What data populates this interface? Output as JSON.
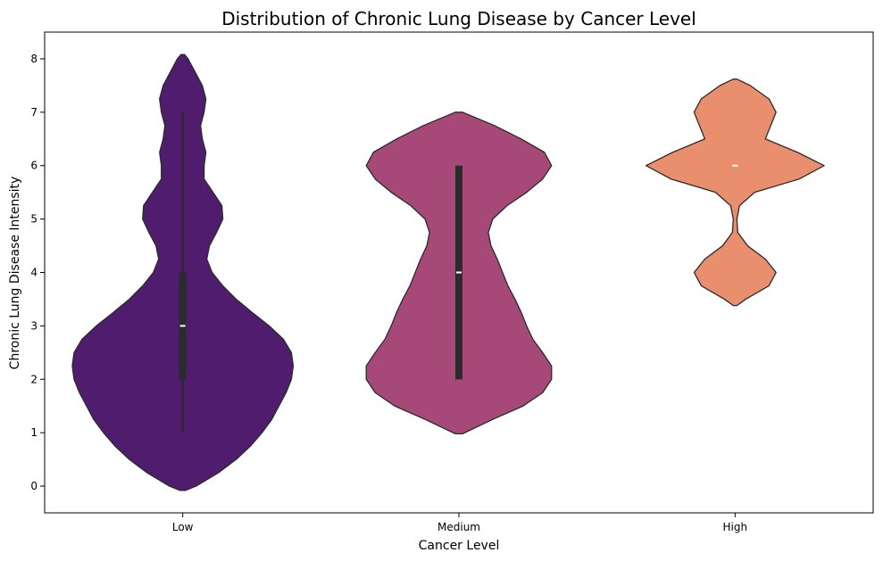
{
  "chart_data": {
    "type": "violin",
    "title": "Distribution of Chronic Lung Disease by Cancer Level",
    "xlabel": "Cancer Level",
    "ylabel": "Chronic Lung Disease Intensity",
    "categories": [
      "Low",
      "Medium",
      "High"
    ],
    "ylim": [
      -0.5,
      8.5
    ],
    "yticks": [
      0,
      1,
      2,
      3,
      4,
      5,
      6,
      7,
      8
    ],
    "grid": false,
    "colors": [
      "#4f1c6e",
      "#a64878",
      "#e98f6e"
    ],
    "edge_color": "#2b2b2b",
    "violins": [
      {
        "category": "Low",
        "density": [
          [
            -0.08,
            0.03
          ],
          [
            0.0,
            0.15
          ],
          [
            0.25,
            0.4
          ],
          [
            0.5,
            0.6
          ],
          [
            0.75,
            0.76
          ],
          [
            1.0,
            0.89
          ],
          [
            1.25,
            1.0
          ],
          [
            1.5,
            1.08
          ],
          [
            1.75,
            1.16
          ],
          [
            2.0,
            1.22
          ],
          [
            2.25,
            1.24
          ],
          [
            2.5,
            1.22
          ],
          [
            2.75,
            1.13
          ],
          [
            3.0,
            0.97
          ],
          [
            3.25,
            0.78
          ],
          [
            3.5,
            0.6
          ],
          [
            3.75,
            0.45
          ],
          [
            4.0,
            0.33
          ],
          [
            4.25,
            0.27
          ],
          [
            4.5,
            0.3
          ],
          [
            4.75,
            0.38
          ],
          [
            5.0,
            0.45
          ],
          [
            5.25,
            0.44
          ],
          [
            5.5,
            0.34
          ],
          [
            5.75,
            0.24
          ],
          [
            6.0,
            0.24
          ],
          [
            6.25,
            0.26
          ],
          [
            6.5,
            0.22
          ],
          [
            6.75,
            0.2
          ],
          [
            7.0,
            0.24
          ],
          [
            7.25,
            0.26
          ],
          [
            7.5,
            0.22
          ],
          [
            7.75,
            0.14
          ],
          [
            8.0,
            0.06
          ],
          [
            8.08,
            0.02
          ]
        ],
        "q1": 2,
        "median": 3,
        "q3": 4,
        "whisker_low": 1,
        "whisker_high": 7
      },
      {
        "category": "Medium",
        "density": [
          [
            0.98,
            0.04
          ],
          [
            1.25,
            0.38
          ],
          [
            1.5,
            0.72
          ],
          [
            1.75,
            0.94
          ],
          [
            2.0,
            1.04
          ],
          [
            2.25,
            1.04
          ],
          [
            2.5,
            0.94
          ],
          [
            2.75,
            0.83
          ],
          [
            3.0,
            0.76
          ],
          [
            3.25,
            0.7
          ],
          [
            3.5,
            0.63
          ],
          [
            3.75,
            0.55
          ],
          [
            4.0,
            0.49
          ],
          [
            4.25,
            0.43
          ],
          [
            4.5,
            0.36
          ],
          [
            4.75,
            0.33
          ],
          [
            5.0,
            0.38
          ],
          [
            5.25,
            0.54
          ],
          [
            5.5,
            0.76
          ],
          [
            5.75,
            0.94
          ],
          [
            6.0,
            1.04
          ],
          [
            6.25,
            0.96
          ],
          [
            6.5,
            0.7
          ],
          [
            6.75,
            0.4
          ],
          [
            7.0,
            0.04
          ]
        ],
        "q1": 2,
        "median": 4,
        "q3": 6,
        "whisker_low": 2,
        "whisker_high": 6
      },
      {
        "category": "High",
        "density": [
          [
            3.38,
            0.02
          ],
          [
            3.5,
            0.12
          ],
          [
            3.75,
            0.38
          ],
          [
            4.0,
            0.46
          ],
          [
            4.25,
            0.34
          ],
          [
            4.5,
            0.14
          ],
          [
            4.75,
            0.03
          ],
          [
            5.0,
            0.02
          ],
          [
            5.25,
            0.05
          ],
          [
            5.5,
            0.22
          ],
          [
            5.75,
            0.72
          ],
          [
            6.0,
            1.0
          ],
          [
            6.25,
            0.7
          ],
          [
            6.5,
            0.34
          ],
          [
            6.75,
            0.4
          ],
          [
            7.0,
            0.46
          ],
          [
            7.25,
            0.38
          ],
          [
            7.5,
            0.17
          ],
          [
            7.62,
            0.02
          ]
        ],
        "q1": 6,
        "median": 6,
        "q3": 6,
        "whisker_low": 6,
        "whisker_high": 6
      }
    ]
  }
}
